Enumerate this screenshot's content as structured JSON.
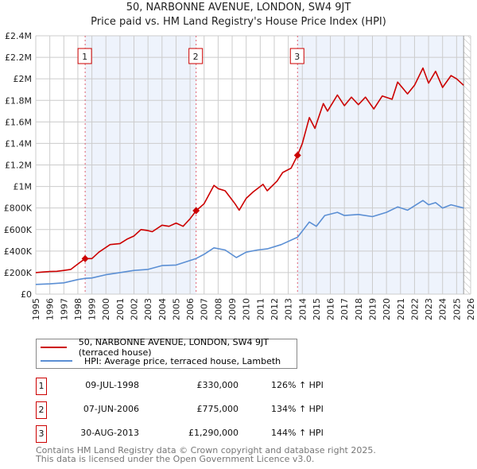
{
  "chart_data": {
    "type": "line",
    "title": "50, NARBONNE AVENUE, LONDON, SW4 9JT",
    "subtitle": "Price paid vs. HM Land Registry's House Price Index (HPI)",
    "xlim": [
      1995,
      2026
    ],
    "ylim": [
      0,
      2400000
    ],
    "x_ticks": [
      "1995",
      "1996",
      "1997",
      "1998",
      "1999",
      "2000",
      "2001",
      "2002",
      "2003",
      "2004",
      "2005",
      "2006",
      "2007",
      "2008",
      "2009",
      "2010",
      "2011",
      "2012",
      "2013",
      "2014",
      "2015",
      "2016",
      "2017",
      "2018",
      "2019",
      "2020",
      "2021",
      "2022",
      "2023",
      "2024",
      "2025",
      "2026"
    ],
    "y_ticks": [
      {
        "value": 0,
        "label": "£0"
      },
      {
        "value": 200000,
        "label": "£200K"
      },
      {
        "value": 400000,
        "label": "£400K"
      },
      {
        "value": 600000,
        "label": "£600K"
      },
      {
        "value": 800000,
        "label": "£800K"
      },
      {
        "value": 1000000,
        "label": "£1M"
      },
      {
        "value": 1200000,
        "label": "£1.2M"
      },
      {
        "value": 1400000,
        "label": "£1.4M"
      },
      {
        "value": 1600000,
        "label": "£1.6M"
      },
      {
        "value": 1800000,
        "label": "£1.8M"
      },
      {
        "value": 2000000,
        "label": "£2M"
      },
      {
        "value": 2200000,
        "label": "£2.2M"
      },
      {
        "value": 2400000,
        "label": "£2.4M"
      }
    ],
    "grid": true,
    "data_end": 2025.5,
    "series": [
      {
        "name": "50, NARBONNE AVENUE, LONDON, SW4 9JT (terraced house)",
        "color": "#cc0000",
        "points": [
          [
            1995,
            200000
          ],
          [
            1995.5,
            205000
          ],
          [
            1996,
            210000
          ],
          [
            1996.5,
            212000
          ],
          [
            1997,
            220000
          ],
          [
            1997.5,
            230000
          ],
          [
            1998,
            280000
          ],
          [
            1998.52,
            330000
          ],
          [
            1999,
            330000
          ],
          [
            1999.5,
            390000
          ],
          [
            2000.3,
            460000
          ],
          [
            2001,
            470000
          ],
          [
            2001.5,
            510000
          ],
          [
            2002,
            540000
          ],
          [
            2002.5,
            600000
          ],
          [
            2003,
            590000
          ],
          [
            2003.3,
            580000
          ],
          [
            2004,
            640000
          ],
          [
            2004.5,
            630000
          ],
          [
            2005,
            660000
          ],
          [
            2005.5,
            630000
          ],
          [
            2006,
            700000
          ],
          [
            2006.43,
            775000
          ],
          [
            2007,
            840000
          ],
          [
            2007.7,
            1010000
          ],
          [
            2008,
            980000
          ],
          [
            2008.5,
            960000
          ],
          [
            2009.2,
            840000
          ],
          [
            2009.5,
            780000
          ],
          [
            2010,
            890000
          ],
          [
            2010.5,
            950000
          ],
          [
            2011.2,
            1020000
          ],
          [
            2011.5,
            960000
          ],
          [
            2012.2,
            1050000
          ],
          [
            2012.6,
            1130000
          ],
          [
            2013.2,
            1170000
          ],
          [
            2013.66,
            1290000
          ],
          [
            2014,
            1400000
          ],
          [
            2014.5,
            1640000
          ],
          [
            2014.9,
            1540000
          ],
          [
            2015.5,
            1770000
          ],
          [
            2015.8,
            1700000
          ],
          [
            2016.5,
            1850000
          ],
          [
            2017,
            1750000
          ],
          [
            2017.5,
            1830000
          ],
          [
            2018,
            1760000
          ],
          [
            2018.5,
            1830000
          ],
          [
            2019.1,
            1720000
          ],
          [
            2019.7,
            1840000
          ],
          [
            2020.4,
            1810000
          ],
          [
            2020.8,
            1970000
          ],
          [
            2021.5,
            1860000
          ],
          [
            2022,
            1940000
          ],
          [
            2022.6,
            2100000
          ],
          [
            2023,
            1960000
          ],
          [
            2023.5,
            2070000
          ],
          [
            2024,
            1920000
          ],
          [
            2024.6,
            2030000
          ],
          [
            2025,
            2000000
          ],
          [
            2025.5,
            1940000
          ]
        ]
      },
      {
        "name": "HPI: Average price, terraced house, Lambeth",
        "color": "#5b8fd4",
        "points": [
          [
            1995,
            90000
          ],
          [
            1996,
            95000
          ],
          [
            1997,
            105000
          ],
          [
            1998,
            135000
          ],
          [
            1998.52,
            146000
          ],
          [
            1999,
            150000
          ],
          [
            2000,
            180000
          ],
          [
            2001,
            200000
          ],
          [
            2002,
            220000
          ],
          [
            2003,
            230000
          ],
          [
            2004,
            265000
          ],
          [
            2005,
            270000
          ],
          [
            2006.43,
            331000
          ],
          [
            2007,
            370000
          ],
          [
            2007.7,
            430000
          ],
          [
            2008.5,
            410000
          ],
          [
            2009.3,
            340000
          ],
          [
            2010,
            390000
          ],
          [
            2010.8,
            410000
          ],
          [
            2011.5,
            420000
          ],
          [
            2012.5,
            460000
          ],
          [
            2013.66,
            529000
          ],
          [
            2014.5,
            670000
          ],
          [
            2015,
            630000
          ],
          [
            2015.6,
            730000
          ],
          [
            2016.5,
            760000
          ],
          [
            2017,
            730000
          ],
          [
            2018,
            740000
          ],
          [
            2019,
            720000
          ],
          [
            2020,
            760000
          ],
          [
            2020.8,
            810000
          ],
          [
            2021.5,
            780000
          ],
          [
            2022.6,
            870000
          ],
          [
            2023,
            830000
          ],
          [
            2023.5,
            850000
          ],
          [
            2024,
            800000
          ],
          [
            2024.6,
            830000
          ],
          [
            2025.5,
            800000
          ]
        ]
      }
    ],
    "sales": [
      {
        "num": "1",
        "x": 1998.52,
        "value": 330000,
        "date": "09-JUL-1998",
        "price": "£330,000",
        "hpi": "126% ↑ HPI"
      },
      {
        "num": "2",
        "x": 2006.43,
        "value": 775000,
        "date": "07-JUN-2006",
        "price": "£775,000",
        "hpi": "134% ↑ HPI"
      },
      {
        "num": "3",
        "x": 2013.66,
        "value": 1290000,
        "date": "30-AUG-2013",
        "price": "£1,290,000",
        "hpi": "144% ↑ HPI"
      }
    ],
    "legend": [
      "50, NARBONNE AVENUE, LONDON, SW4 9JT (terraced house)",
      "HPI: Average price, terraced house, Lambeth"
    ],
    "legend_placement": "bottom"
  },
  "footer": {
    "line1": "Contains HM Land Registry data © Crown copyright and database right 2025.",
    "line2": "This data is licensed under the Open Government Licence v3.0."
  },
  "colors": {
    "red": "#cc0000",
    "blue": "#5b8fd4",
    "shade": "#eef3fc",
    "grid": "#cccccc"
  }
}
